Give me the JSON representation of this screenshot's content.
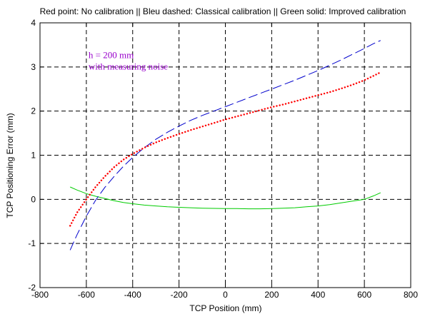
{
  "chart_data": {
    "type": "line",
    "title": "Red point: No calibration || Bleu dashed: Classical calibration || Green solid: Improved calibration",
    "xlabel": "TCP Position (mm)",
    "ylabel": "TCP Positioning Error (mm)",
    "xlim": [
      -800,
      800
    ],
    "ylim": [
      -2,
      4
    ],
    "xticks": [
      -800,
      -600,
      -400,
      -200,
      0,
      200,
      400,
      600,
      800
    ],
    "yticks": [
      -2,
      -1,
      0,
      1,
      2,
      3,
      4
    ],
    "grid": true,
    "annotation": {
      "lines": [
        "h = 200 mm",
        "with measuring noise"
      ],
      "color": "#9900cc"
    },
    "series": [
      {
        "style": "dotted",
        "color": "#ff0000",
        "x": [
          -670,
          -640,
          -600,
          -560,
          -520,
          -480,
          -440,
          -400,
          -350,
          -300,
          -250,
          -200,
          -150,
          -100,
          -50,
          0,
          50,
          100,
          150,
          200,
          250,
          300,
          350,
          400,
          450,
          500,
          550,
          600,
          640,
          670
        ],
        "y": [
          -0.6,
          -0.3,
          0.0,
          0.28,
          0.52,
          0.73,
          0.9,
          1.03,
          1.17,
          1.29,
          1.39,
          1.48,
          1.57,
          1.65,
          1.73,
          1.81,
          1.88,
          1.95,
          2.02,
          2.09,
          2.15,
          2.22,
          2.29,
          2.36,
          2.43,
          2.51,
          2.6,
          2.7,
          2.8,
          2.88
        ]
      },
      {
        "style": "dashed",
        "color": "#0000cc",
        "x": [
          -670,
          -640,
          -600,
          -560,
          -520,
          -480,
          -440,
          -400,
          -350,
          -300,
          -250,
          -200,
          -150,
          -100,
          -50,
          0,
          50,
          100,
          150,
          200,
          250,
          300,
          350,
          400,
          450,
          500,
          550,
          600,
          640,
          670
        ],
        "y": [
          -1.15,
          -0.8,
          -0.38,
          -0.02,
          0.27,
          0.52,
          0.75,
          0.95,
          1.17,
          1.36,
          1.52,
          1.66,
          1.79,
          1.9,
          2.0,
          2.1,
          2.2,
          2.3,
          2.4,
          2.5,
          2.6,
          2.7,
          2.81,
          2.92,
          3.04,
          3.16,
          3.29,
          3.42,
          3.53,
          3.6
        ]
      },
      {
        "style": "solid",
        "color": "#00cc00",
        "x": [
          -670,
          -640,
          -600,
          -560,
          -520,
          -480,
          -440,
          -400,
          -350,
          -300,
          -250,
          -200,
          -150,
          -100,
          -50,
          0,
          50,
          100,
          150,
          200,
          250,
          300,
          350,
          400,
          450,
          500,
          550,
          600,
          640,
          670
        ],
        "y": [
          0.28,
          0.21,
          0.13,
          0.07,
          0.02,
          -0.03,
          -0.07,
          -0.1,
          -0.13,
          -0.15,
          -0.17,
          -0.18,
          -0.19,
          -0.2,
          -0.205,
          -0.21,
          -0.21,
          -0.215,
          -0.215,
          -0.21,
          -0.2,
          -0.19,
          -0.17,
          -0.15,
          -0.12,
          -0.08,
          -0.04,
          0.0,
          0.08,
          0.15
        ]
      }
    ]
  }
}
